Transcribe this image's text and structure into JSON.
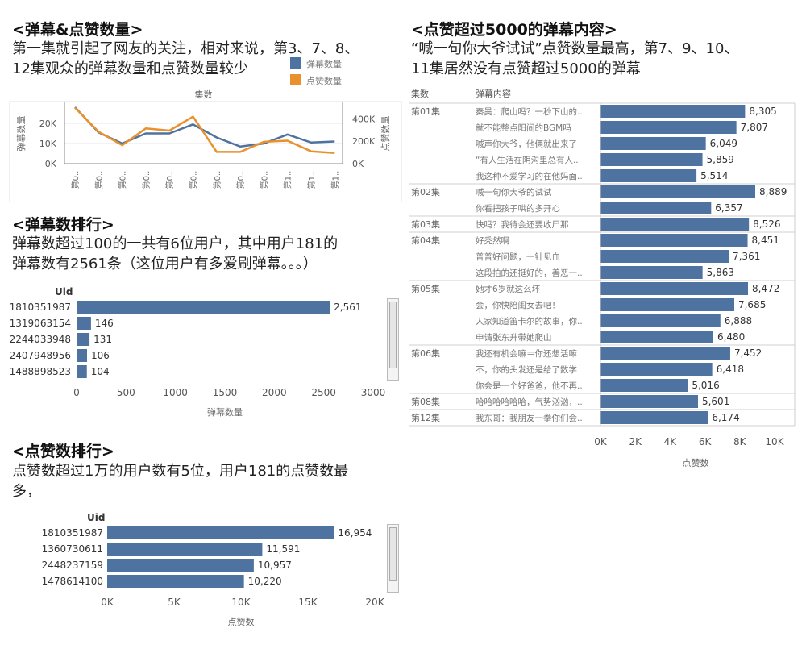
{
  "sections": {
    "trend": {
      "title": "<弹幕&点赞数量>",
      "desc_line1": "第一集就引起了网友的关注，相对来说，第3、7、8、",
      "desc_line2": "12集观众的弹幕数量和点赞数量较少"
    },
    "danmu_rank": {
      "title": "<弹幕数排行>",
      "desc_line1": "弹幕数超过100的一共有6位用户，其中用户181的",
      "desc_line2": "弹幕数有2561条（这位用户有多爱刷弹幕。。。）"
    },
    "like_rank": {
      "title": "<点赞数排行>",
      "desc_line1": "点赞数超过1万的用户数有5位，用户181的点赞数最",
      "desc_line2": "多，"
    },
    "top_comments": {
      "title": "<点赞超过5000的弹幕内容>",
      "desc_line1": "“喊一句你大爷试试”点赞数量最高，第7、9、10、",
      "desc_line2": "11集居然没有点赞超过5000的弹幕"
    }
  },
  "colors": {
    "blue": "#4e73a0",
    "orange": "#e8912d",
    "grid": "#e6e6e6",
    "axis": "#888888"
  },
  "chart_data": [
    {
      "id": "trend",
      "type": "line",
      "xlabel": "集数",
      "tick_labels": [
        "第0..",
        "第0..",
        "第0..",
        "第0..",
        "第0..",
        "第0..",
        "第0..",
        "第0..",
        "第0..",
        "第1..",
        "第1..",
        "第1.."
      ],
      "legend": [
        {
          "name": "弹幕数量",
          "color": "#4e73a0"
        },
        {
          "name": "点赞数量",
          "color": "#e8912d"
        }
      ],
      "left_axis": {
        "label": "弹幕数量",
        "ticks": [
          "0K",
          "10K",
          "20K"
        ],
        "max": 30000
      },
      "right_axis": {
        "label": "点赞数量",
        "ticks": [
          "0K",
          "200K",
          "400K"
        ],
        "max": 540000
      },
      "series": [
        {
          "name": "弹幕数量",
          "axis": "left",
          "values": [
            28000,
            15500,
            10000,
            15000,
            15000,
            19500,
            13000,
            8500,
            10000,
            14500,
            10500,
            11000
          ]
        },
        {
          "name": "点赞数量",
          "axis": "right",
          "values": [
            500000,
            285000,
            165000,
            315000,
            295000,
            420000,
            105000,
            105000,
            195000,
            205000,
            110000,
            95000
          ]
        }
      ]
    },
    {
      "id": "danmu_rank",
      "type": "bar",
      "orientation": "horizontal",
      "header": "Uid",
      "xlabel": "弹幕数量",
      "xlim": [
        0,
        3000
      ],
      "x_ticks": [
        "0",
        "500",
        "1000",
        "1500",
        "2000",
        "2500",
        "3000"
      ],
      "categories": [
        "1810351987",
        "1319063154",
        "2244033948",
        "2407948956",
        "1488898523"
      ],
      "values": [
        2561,
        146,
        131,
        106,
        104
      ],
      "value_labels": [
        "2,561",
        "146",
        "131",
        "106",
        "104"
      ]
    },
    {
      "id": "like_rank",
      "type": "bar",
      "orientation": "horizontal",
      "header": "Uid",
      "xlabel": "点赞数",
      "xlim": [
        0,
        20000
      ],
      "x_ticks": [
        "0K",
        "5K",
        "10K",
        "15K",
        "20K"
      ],
      "categories": [
        "1810351987",
        "1360730611",
        "2448237159",
        "1478614100"
      ],
      "values": [
        16954,
        11591,
        10957,
        10220
      ],
      "value_labels": [
        "16,954",
        "11,591",
        "10,957",
        "10,220"
      ]
    },
    {
      "id": "top_comments",
      "type": "bar",
      "orientation": "horizontal",
      "header_episode": "集数",
      "header_content": "弹幕内容",
      "xlabel": "点赞数",
      "xlim": [
        0,
        10000
      ],
      "x_ticks": [
        "0K",
        "2K",
        "4K",
        "6K",
        "8K",
        "10K"
      ],
      "groups": [
        {
          "episode": "第01集",
          "rows": [
            {
              "text": "秦昊：爬山吗？一秒下山的..",
              "value": 8305,
              "label": "8,305"
            },
            {
              "text": "就不能整点阳间的BGM吗",
              "value": 7807,
              "label": "7,807"
            },
            {
              "text": "喊声你大爷，他俩就出来了",
              "value": 6049,
              "label": "6,049"
            },
            {
              "text": "“有人生活在阴沟里总有人..",
              "value": 5859,
              "label": "5,859"
            },
            {
              "text": "我这种不爱学习的在他妈面..",
              "value": 5514,
              "label": "5,514"
            }
          ]
        },
        {
          "episode": "第02集",
          "rows": [
            {
              "text": "喊一句你大爷的试试",
              "value": 8889,
              "label": "8,889"
            },
            {
              "text": "你看把孩子哄的多开心",
              "value": 6357,
              "label": "6,357"
            }
          ]
        },
        {
          "episode": "第03集",
          "rows": [
            {
              "text": "快吗？我待会还要收尸那",
              "value": 8526,
              "label": "8,526"
            }
          ]
        },
        {
          "episode": "第04集",
          "rows": [
            {
              "text": "好秃然啊",
              "value": 8451,
              "label": "8,451"
            },
            {
              "text": "普普好问题，一针见血",
              "value": 7361,
              "label": "7,361"
            },
            {
              "text": "这段拍的还挺好的，善恶一..",
              "value": 5863,
              "label": "5,863"
            }
          ]
        },
        {
          "episode": "第05集",
          "rows": [
            {
              "text": "她才6岁就这么坏",
              "value": 8472,
              "label": "8,472"
            },
            {
              "text": "会，你快陪闺女去吧！",
              "value": 7685,
              "label": "7,685"
            },
            {
              "text": "人家知道笛卡尔的故事，你..",
              "value": 6888,
              "label": "6,888"
            },
            {
              "text": "申请张东升带她爬山",
              "value": 6480,
              "label": "6,480"
            }
          ]
        },
        {
          "episode": "第06集",
          "rows": [
            {
              "text": "我还有机会嘛＝你还想活嘛",
              "value": 7452,
              "label": "7,452"
            },
            {
              "text": "不，你的头发还是给了数学",
              "value": 6418,
              "label": "6,418"
            },
            {
              "text": "你会是一个好爸爸，他不再..",
              "value": 5016,
              "label": "5,016"
            }
          ]
        },
        {
          "episode": "第08集",
          "rows": [
            {
              "text": "哈哈哈哈哈哈，气势汹汹，..",
              "value": 5601,
              "label": "5,601"
            }
          ]
        },
        {
          "episode": "第12集",
          "rows": [
            {
              "text": "我东哥：我朋友一拳你们会..",
              "value": 6174,
              "label": "6,174"
            }
          ]
        }
      ]
    }
  ]
}
